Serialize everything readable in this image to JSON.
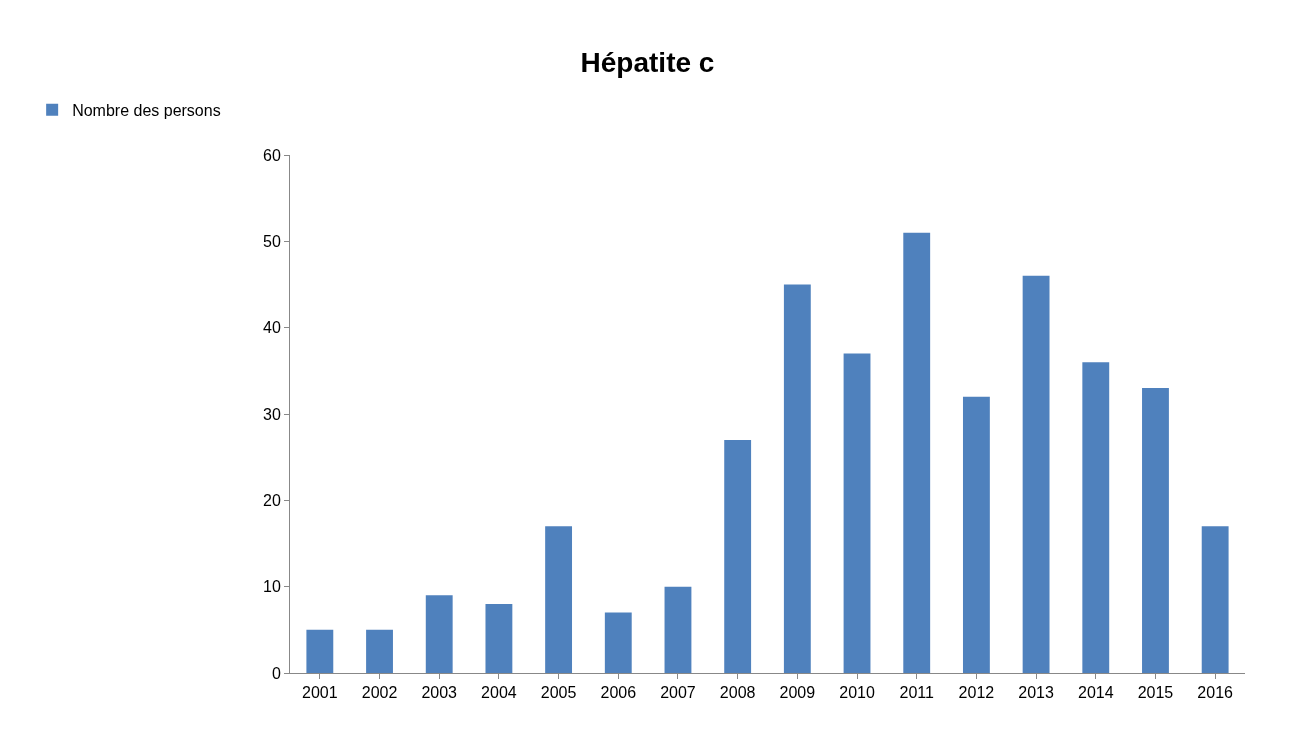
{
  "chart_data": {
    "type": "bar",
    "title": "Hépatite c",
    "categories": [
      "2001",
      "2002",
      "2003",
      "2004",
      "2005",
      "2006",
      "2007",
      "2008",
      "2009",
      "2010",
      "2011",
      "2012",
      "2013",
      "2014",
      "2015",
      "2016"
    ],
    "series": [
      {
        "name": "Nombre des persons",
        "color": "#4f81bd",
        "values": [
          5,
          5,
          9,
          8,
          17,
          7,
          10,
          27,
          45,
          37,
          51,
          32,
          46,
          36,
          33,
          17
        ]
      }
    ],
    "ylim": [
      0,
      60
    ],
    "yticks": [
      0,
      10,
      20,
      30,
      40,
      50,
      60
    ],
    "grid": false,
    "legend": "top left"
  }
}
